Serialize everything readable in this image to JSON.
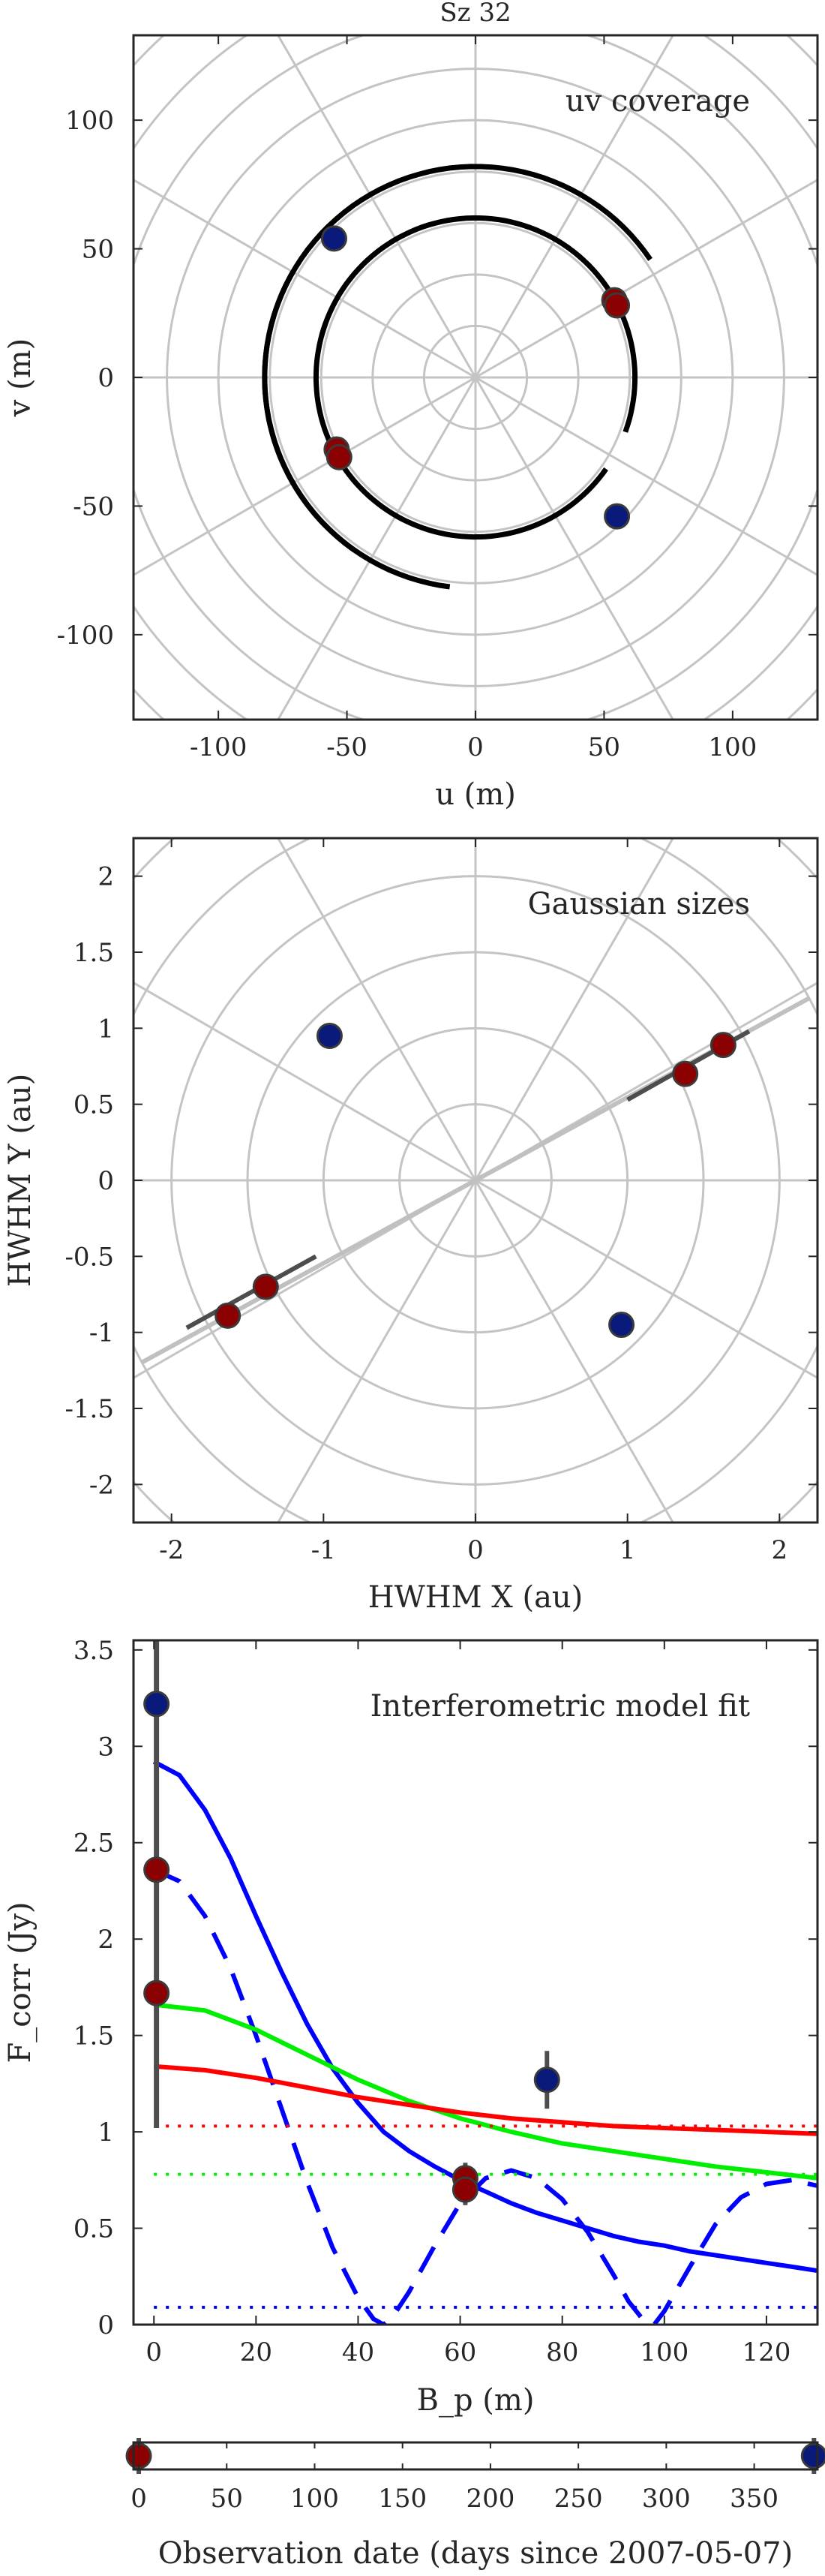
{
  "figure_title": "Sz 32",
  "chart_data": [
    {
      "type": "scatter",
      "panel": "uv",
      "annotation": "uv coverage",
      "xlabel": "u (m)",
      "ylabel": "v (m)",
      "xlim": [
        -133,
        133
      ],
      "ylim": [
        -133,
        133
      ],
      "xticks": [
        -100,
        -50,
        0,
        50,
        100
      ],
      "yticks": [
        -100,
        -50,
        0,
        50,
        100
      ],
      "polar_grid": {
        "radii": [
          20,
          40,
          60,
          80,
          100,
          120,
          140,
          160,
          180
        ],
        "spoke_step_deg": 30
      },
      "tracks": [
        {
          "radius": 82,
          "start_deg": 235,
          "end_deg": 150
        },
        {
          "radius": 62,
          "start_deg": 160,
          "end_deg": 325
        },
        {
          "radius": 62,
          "start_deg": 340,
          "end_deg": 525
        },
        {
          "radius": 82,
          "start_deg": 34,
          "end_deg": 263
        }
      ],
      "series": [
        {
          "color": "#8b0000",
          "points": [
            {
              "u": 54,
              "v": 30
            },
            {
              "u": 55,
              "v": 28
            },
            {
              "u": -54,
              "v": -28
            },
            {
              "u": -53,
              "v": -31
            }
          ]
        },
        {
          "color": "#0a1a7a",
          "points": [
            {
              "u": -55,
              "v": 54
            },
            {
              "u": 55,
              "v": -54
            }
          ]
        }
      ]
    },
    {
      "type": "scatter",
      "panel": "sizes",
      "annotation": "Gaussian sizes",
      "xlabel": "HWHM X (au)",
      "ylabel": "HWHM Y (au)",
      "xlim": [
        -2.25,
        2.25
      ],
      "ylim": [
        -2.25,
        2.25
      ],
      "xticks": [
        -2,
        -1,
        0,
        1,
        2
      ],
      "yticks": [
        -2,
        -1.5,
        -1,
        -0.5,
        0,
        0.5,
        1,
        1.5,
        2
      ],
      "polar_grid": {
        "radii": [
          0.5,
          1.0,
          1.5,
          2.0,
          2.5,
          3.0
        ],
        "spoke_step_deg": 30
      },
      "lines": [
        {
          "color": "#c0c0c0",
          "x1": -2.2,
          "y1": -1.2,
          "x2": 2.2,
          "y2": 1.2
        },
        {
          "color": "#4d4d4d",
          "x1": 1.0,
          "y1": 0.53,
          "x2": 1.8,
          "y2": 0.98
        },
        {
          "color": "#4d4d4d",
          "x1": -1.9,
          "y1": -0.97,
          "x2": -1.05,
          "y2": -0.5
        }
      ],
      "series": [
        {
          "color": "#8b0000",
          "points": [
            {
              "x": 1.38,
              "y": 0.7
            },
            {
              "x": 1.63,
              "y": 0.89
            },
            {
              "x": -1.38,
              "y": -0.7
            },
            {
              "x": -1.63,
              "y": -0.89
            }
          ]
        },
        {
          "color": "#0a1a7a",
          "points": [
            {
              "x": -0.96,
              "y": 0.95
            },
            {
              "x": 0.96,
              "y": -0.95
            }
          ]
        }
      ]
    },
    {
      "type": "line",
      "panel": "model",
      "annotation": "Interferometric model fit",
      "xlabel": "B_p (m)",
      "ylabel": "F_corr (Jy)",
      "xlim": [
        -4,
        130
      ],
      "ylim": [
        0,
        3.55
      ],
      "xticks": [
        0,
        20,
        40,
        60,
        80,
        100,
        120
      ],
      "yticks": [
        0,
        0.5,
        1,
        1.5,
        2,
        2.5,
        3,
        3.5
      ],
      "series": [
        {
          "color": "#0000ff",
          "style": "solid",
          "x": [
            0,
            5,
            10,
            15,
            20,
            25,
            30,
            35,
            40,
            45,
            50,
            55,
            60,
            65,
            70,
            75,
            80,
            85,
            90,
            95,
            100,
            105,
            110,
            115,
            120,
            125,
            130
          ],
          "y": [
            2.92,
            2.85,
            2.67,
            2.42,
            2.12,
            1.83,
            1.56,
            1.33,
            1.15,
            1.0,
            0.9,
            0.82,
            0.75,
            0.69,
            0.63,
            0.58,
            0.54,
            0.5,
            0.46,
            0.43,
            0.41,
            0.38,
            0.36,
            0.34,
            0.32,
            0.3,
            0.28
          ]
        },
        {
          "color": "#0000ff",
          "style": "dashed",
          "x": [
            0,
            5,
            10,
            15,
            20,
            25,
            30,
            35,
            40,
            43,
            45,
            47,
            50,
            55,
            60,
            65,
            70,
            75,
            80,
            85,
            90,
            93,
            96,
            98,
            100,
            105,
            110,
            115,
            120,
            125,
            130
          ],
          "y": [
            2.36,
            2.3,
            2.12,
            1.85,
            1.5,
            1.12,
            0.74,
            0.4,
            0.14,
            0.03,
            0.0,
            0.05,
            0.17,
            0.41,
            0.63,
            0.76,
            0.8,
            0.76,
            0.65,
            0.48,
            0.26,
            0.12,
            0.02,
            0.0,
            0.07,
            0.3,
            0.52,
            0.66,
            0.73,
            0.75,
            0.72
          ]
        },
        {
          "color": "#00ee00",
          "style": "solid",
          "x": [
            0,
            10,
            20,
            30,
            40,
            50,
            60,
            70,
            80,
            90,
            100,
            110,
            120,
            130
          ],
          "y": [
            1.66,
            1.63,
            1.53,
            1.4,
            1.27,
            1.16,
            1.07,
            1.0,
            0.94,
            0.9,
            0.86,
            0.82,
            0.79,
            0.76
          ]
        },
        {
          "color": "#ff0000",
          "style": "solid",
          "x": [
            0,
            10,
            20,
            30,
            40,
            50,
            60,
            70,
            80,
            90,
            100,
            110,
            120,
            130
          ],
          "y": [
            1.34,
            1.32,
            1.28,
            1.23,
            1.18,
            1.14,
            1.1,
            1.07,
            1.05,
            1.03,
            1.02,
            1.01,
            1.0,
            0.99
          ]
        },
        {
          "color": "#ff0000",
          "style": "dotted",
          "x": [
            0,
            130
          ],
          "y": [
            1.03,
            1.03
          ]
        },
        {
          "color": "#00ee00",
          "style": "dotted",
          "x": [
            0,
            130
          ],
          "y": [
            0.78,
            0.78
          ]
        },
        {
          "color": "#0000ff",
          "style": "dotted",
          "x": [
            0,
            130
          ],
          "y": [
            0.09,
            0.09
          ]
        }
      ],
      "points": [
        {
          "color": "#0a1a7a",
          "x": 0.5,
          "y": 3.22,
          "err": 0
        },
        {
          "color": "#8b0000",
          "x": 0.5,
          "y": 2.36,
          "err": 0
        },
        {
          "color": "#8b0000",
          "x": 0.5,
          "y": 1.72,
          "err": 0
        },
        {
          "color": "#0a1a7a",
          "x": 77,
          "y": 1.27,
          "err": 0.15
        },
        {
          "color": "#8b0000",
          "x": 61,
          "y": 0.76,
          "err": 0.08
        },
        {
          "color": "#8b0000",
          "x": 61,
          "y": 0.7,
          "err": 0.08
        }
      ],
      "big_error_bar": {
        "x": 0.5,
        "low": 1.02,
        "high": 3.55
      }
    },
    {
      "type": "scatter",
      "panel": "dates",
      "xlabel": "Observation date (days since 2007-05-07)",
      "xlim": [
        -3,
        386
      ],
      "xticks": [
        0,
        50,
        100,
        150,
        200,
        250,
        300,
        350
      ],
      "points": [
        {
          "color": "#8b0000",
          "x": 0
        },
        {
          "color": "#0a1a7a",
          "x": 384
        }
      ]
    }
  ]
}
